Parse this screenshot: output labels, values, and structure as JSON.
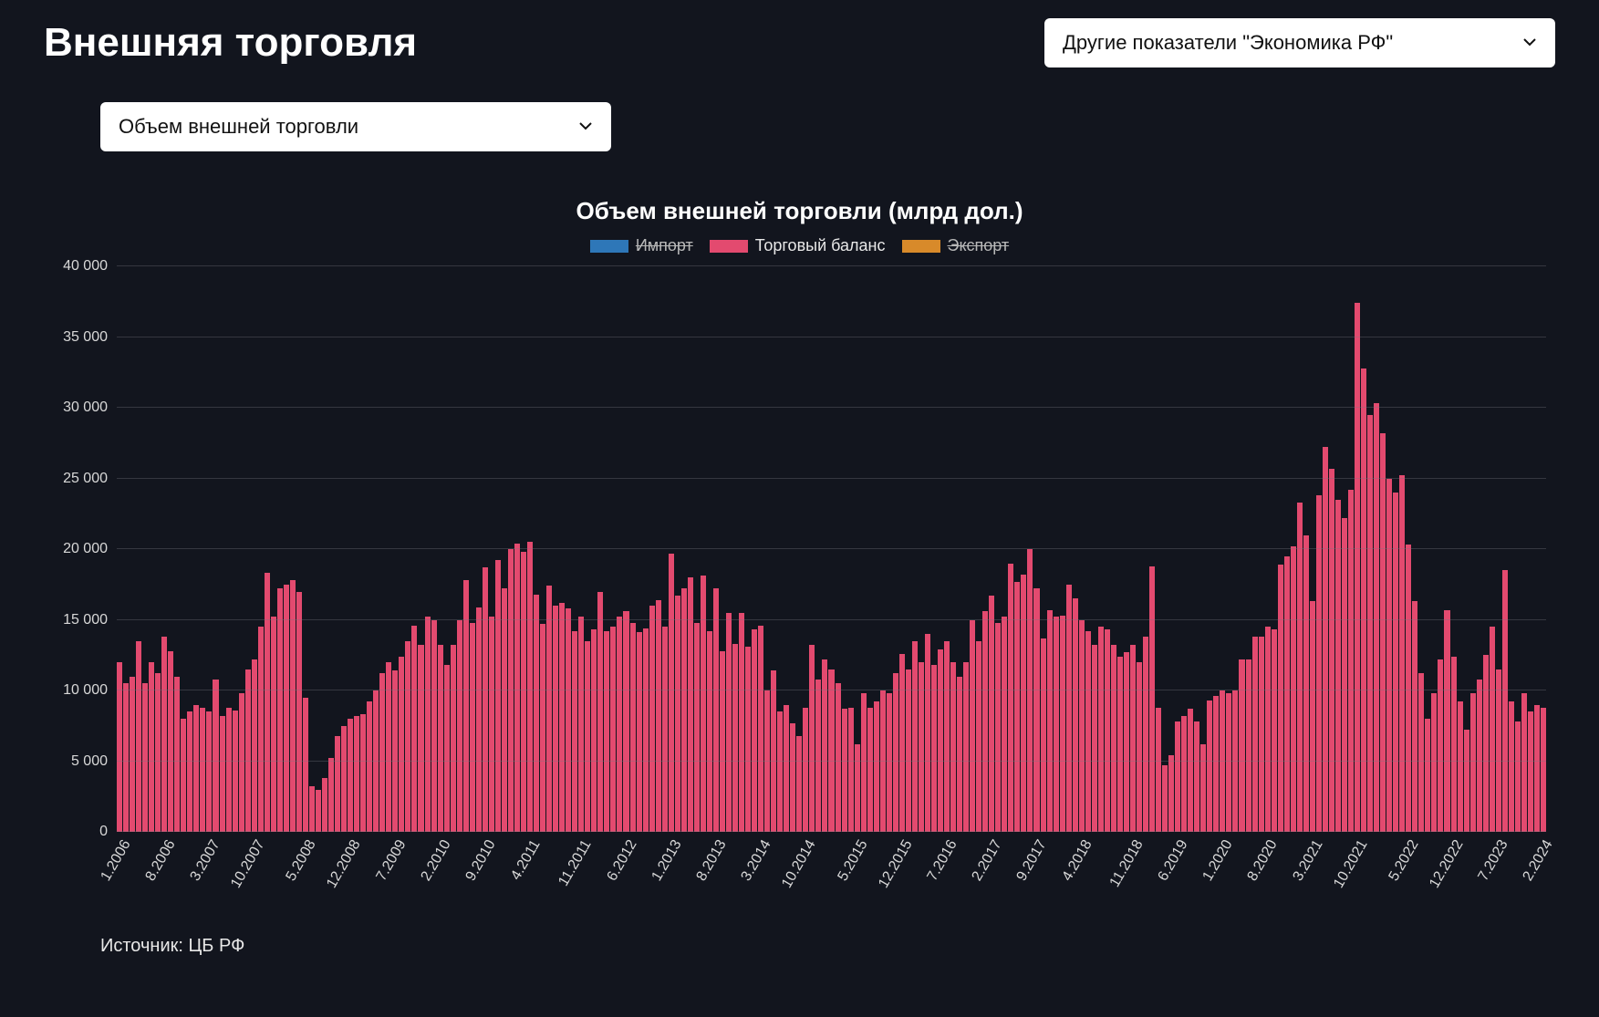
{
  "header": {
    "title": "Внешняя торговля",
    "main_dropdown": "Другие показатели \"Экономика РФ\""
  },
  "sub_dropdown": "Объем внешней торговли",
  "chart": {
    "type": "bar",
    "title": "Объем внешней торговли (млрд дол.)",
    "background_color": "#12151e",
    "grid_color": "rgba(120,120,130,0.35)",
    "text_color": "#d8d8d8",
    "title_fontsize": 26,
    "label_fontsize": 16,
    "legend": [
      {
        "label": "Импорт",
        "color": "#2e77b8",
        "hidden": true
      },
      {
        "label": "Торговый баланс",
        "color": "#e34a6f",
        "hidden": false
      },
      {
        "label": "Экспорт",
        "color": "#d88a2a",
        "hidden": true
      }
    ],
    "ylim": [
      0,
      40000
    ],
    "ytick_step": 5000,
    "yticks": [
      "0",
      "5 000",
      "10 000",
      "15 000",
      "20 000",
      "25 000",
      "30 000",
      "35 000",
      "40 000"
    ],
    "xlabels": [
      "1.2006",
      "8.2006",
      "3.2007",
      "10.2007",
      "5.2008",
      "12.2008",
      "7.2009",
      "2.2010",
      "9.2010",
      "4.2011",
      "11.2011",
      "6.2012",
      "1.2013",
      "8.2013",
      "3.2014",
      "10.2014",
      "5.2015",
      "12.2015",
      "7.2016",
      "2.2017",
      "9.2017",
      "4.2018",
      "11.2018",
      "6.2019",
      "1.2020",
      "8.2020",
      "3.2021",
      "10.2021",
      "5.2022",
      "12.2022",
      "7.2023",
      "2.2024"
    ],
    "bar_color": "#e34a6f",
    "values": [
      12000,
      10500,
      11000,
      13500,
      10500,
      12000,
      11200,
      13800,
      12800,
      11000,
      8000,
      8500,
      9000,
      8800,
      8500,
      10800,
      8200,
      8800,
      8600,
      9800,
      11500,
      12200,
      14500,
      18300,
      15200,
      17200,
      17500,
      17800,
      17000,
      9500,
      3200,
      3000,
      3800,
      5200,
      6800,
      7500,
      8000,
      8200,
      8300,
      9200,
      10000,
      11200,
      12000,
      11400,
      12400,
      13500,
      14600,
      13200,
      15200,
      15000,
      13200,
      11800,
      13200,
      15000,
      17800,
      14800,
      15900,
      18700,
      15200,
      19200,
      17200,
      20000,
      20400,
      19800,
      20500,
      16800,
      14700,
      17400,
      16000,
      16200,
      15800,
      14200,
      15200,
      13500,
      14300,
      17000,
      14200,
      14500,
      15200,
      15600,
      14800,
      14100,
      14400,
      16000,
      16400,
      14500,
      19700,
      16700,
      17200,
      18000,
      14800,
      18100,
      14200,
      17200,
      12800,
      15500,
      13300,
      15500,
      13100,
      14300,
      14600,
      10000,
      11400,
      8500,
      9000,
      7700,
      6800,
      8800,
      13200,
      10800,
      12200,
      11500,
      10500,
      8700,
      8800,
      6200,
      9800,
      8800,
      9200,
      10000,
      9800,
      11200,
      12600,
      11500,
      13500,
      12000,
      14000,
      11800,
      12900,
      13500,
      12000,
      11000,
      12000,
      15000,
      13500,
      15600,
      16700,
      14800,
      15200,
      19000,
      17700,
      18200,
      20000,
      17200,
      13700,
      15700,
      15200,
      15300,
      17500,
      16500,
      15000,
      14200,
      13200,
      14500,
      14300,
      13200,
      12400,
      12700,
      13200,
      12000,
      13800,
      18800,
      8800,
      4700,
      5400,
      7800,
      8200,
      8700,
      7800,
      6200,
      9300,
      9600,
      10000,
      9800,
      10000,
      12200,
      12200,
      13800,
      13800,
      14500,
      14300,
      18900,
      19500,
      20200,
      23300,
      21000,
      16300,
      23800,
      27200,
      25700,
      23500,
      22200,
      24200,
      37400,
      32800,
      29500,
      30300,
      28200,
      25000,
      24000,
      25200,
      20300,
      16300,
      11200,
      8000,
      9800,
      12200,
      15700,
      12400,
      9200,
      7200,
      9800,
      10800,
      12500,
      14500,
      11500,
      18500,
      9200,
      7800,
      9800,
      8500,
      9000,
      8800
    ]
  },
  "source": "Источник: ЦБ РФ"
}
